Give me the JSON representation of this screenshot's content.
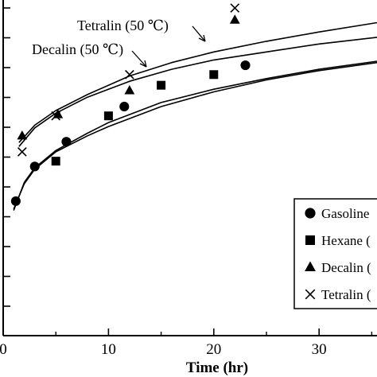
{
  "chart_data": {
    "type": "scatter",
    "xlabel": "Time (hr)",
    "ylabel": "",
    "xlim": [
      0,
      35.5
    ],
    "ylim": [
      0,
      12.6
    ],
    "x_ticks": [
      0,
      10,
      20,
      30
    ],
    "y_tick_count": 13,
    "grid": false,
    "legend_placement": "right-center (clipped)",
    "annotations": [
      {
        "text": "Tetralin (50 ℃)",
        "series": "Tetralin"
      },
      {
        "text": "Decalin (50 ℃)",
        "series": "Decalin"
      }
    ],
    "series": [
      {
        "name": "Gasoline",
        "legend_label": "Gasoline",
        "marker": "circle",
        "x": [
          1.2,
          3.0,
          6.0,
          11.5,
          23.0
        ],
        "y": [
          5.05,
          6.35,
          7.28,
          8.6,
          10.15
        ]
      },
      {
        "name": "Hexane",
        "legend_label": "Hexane (",
        "marker": "square",
        "x": [
          5.0,
          10.0,
          15.0,
          20.0
        ],
        "y": [
          6.55,
          8.25,
          9.4,
          9.8
        ]
      },
      {
        "name": "Decalin",
        "legend_label": "Decalin (",
        "marker": "triangle",
        "x": [
          1.8,
          5.2,
          12.0,
          22.0
        ],
        "y": [
          7.5,
          8.3,
          9.2,
          11.85
        ]
      },
      {
        "name": "Tetralin",
        "legend_label": "Tetralin (",
        "marker": "x",
        "x": [
          1.8,
          5.0,
          12.0,
          22.0
        ],
        "y": [
          6.9,
          8.25,
          9.8,
          12.3
        ]
      }
    ],
    "curves": [
      {
        "name": "Tetralin",
        "x": [
          1.5,
          3,
          5,
          8,
          12,
          16,
          20,
          25,
          30,
          35.5
        ],
        "y": [
          7.25,
          7.9,
          8.45,
          9.05,
          9.75,
          10.25,
          10.65,
          11.05,
          11.4,
          11.75
        ]
      },
      {
        "name": "Decalin",
        "x": [
          1.5,
          3,
          5,
          8,
          12,
          16,
          20,
          25,
          30,
          35.5
        ],
        "y": [
          7.1,
          7.8,
          8.35,
          8.95,
          9.55,
          10.0,
          10.35,
          10.65,
          10.95,
          11.2
        ]
      },
      {
        "name": "Hexane",
        "x": [
          1,
          2,
          3,
          5,
          8,
          10,
          15,
          20,
          25,
          30,
          35.5
        ],
        "y": [
          4.7,
          5.75,
          6.3,
          6.95,
          7.6,
          8.0,
          8.75,
          9.25,
          9.65,
          10.0,
          10.3
        ]
      },
      {
        "name": "Gasoline",
        "x": [
          1,
          2,
          3,
          5,
          8,
          10,
          15,
          20,
          25,
          30,
          35.5
        ],
        "y": [
          4.75,
          5.7,
          6.25,
          6.9,
          7.5,
          7.85,
          8.6,
          9.15,
          9.6,
          9.95,
          10.25
        ]
      }
    ]
  }
}
